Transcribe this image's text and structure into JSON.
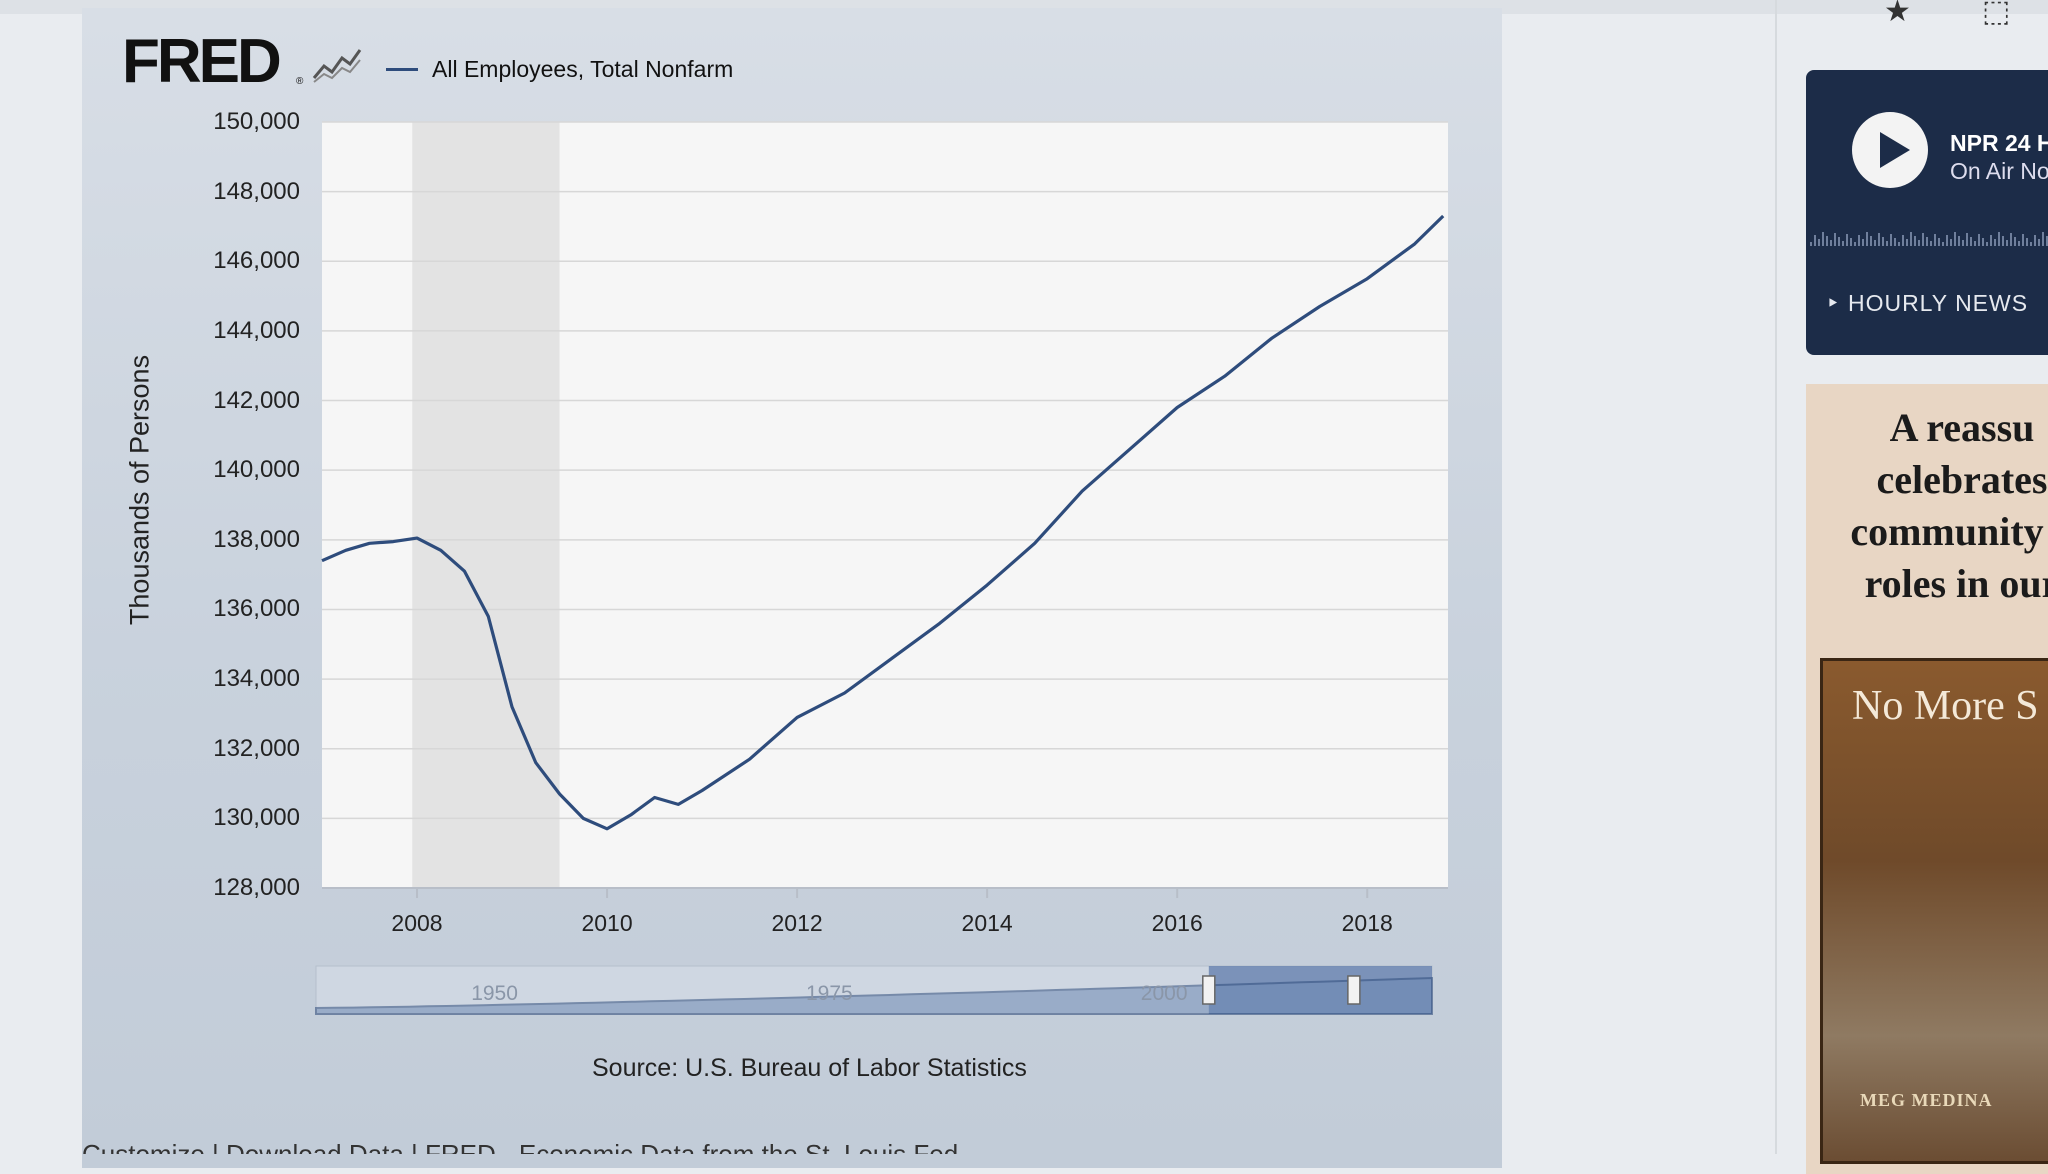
{
  "page": {
    "logo_text": "FRED",
    "logo_reg": "®",
    "source": "Source: U.S. Bureau of Labor Statistics",
    "bottom_text": "Customize | Download Data | FRED - Economic Data from the St. Louis Fed"
  },
  "sidebar": {
    "npr_title": "NPR 24 H",
    "npr_subtitle": "On Air No",
    "hourly_news": "‣ HOURLY NEWS",
    "promo_text": "A reassu\ncelebrates\ncommunity a\nroles in our",
    "book_title": "No More S",
    "book_author": "MEG MEDINA"
  },
  "colors": {
    "series": "#2e4c7c",
    "recession": "#e3e3e3",
    "plot_bg": "#f6f6f6",
    "navigator_fill": "#6e89b4"
  },
  "chart_data": {
    "type": "line",
    "title": "",
    "xlabel": "",
    "ylabel": "Thousands of Persons",
    "ylim": [
      128000,
      150000
    ],
    "xlim": [
      2007.0,
      2018.85
    ],
    "yticks": [
      "150,000",
      "148,000",
      "146,000",
      "144,000",
      "142,000",
      "140,000",
      "138,000",
      "136,000",
      "134,000",
      "132,000",
      "130,000",
      "128,000"
    ],
    "xticks": [
      "2008",
      "2010",
      "2012",
      "2014",
      "2016",
      "2018"
    ],
    "grid": true,
    "legend_position": "top-left",
    "recessions": [
      [
        2007.95,
        2009.5
      ]
    ],
    "series": [
      {
        "name": "All Employees, Total Nonfarm",
        "x": [
          2007.0,
          2007.25,
          2007.5,
          2007.75,
          2008.0,
          2008.25,
          2008.5,
          2008.75,
          2009.0,
          2009.25,
          2009.5,
          2009.75,
          2010.0,
          2010.25,
          2010.5,
          2010.75,
          2011.0,
          2011.5,
          2012.0,
          2012.5,
          2013.0,
          2013.5,
          2014.0,
          2014.5,
          2015.0,
          2015.5,
          2016.0,
          2016.5,
          2017.0,
          2017.5,
          2018.0,
          2018.5,
          2018.8
        ],
        "y": [
          137400,
          137700,
          137900,
          137950,
          138050,
          137700,
          137100,
          135800,
          133200,
          131600,
          130700,
          130000,
          129700,
          130100,
          130600,
          130400,
          130800,
          131700,
          132900,
          133600,
          134600,
          135600,
          136700,
          137900,
          139400,
          140600,
          141800,
          142700,
          143800,
          144700,
          145500,
          146500,
          147300
        ]
      }
    ],
    "navigator": {
      "labels": [
        "1950",
        "1975",
        "2000"
      ]
    }
  }
}
